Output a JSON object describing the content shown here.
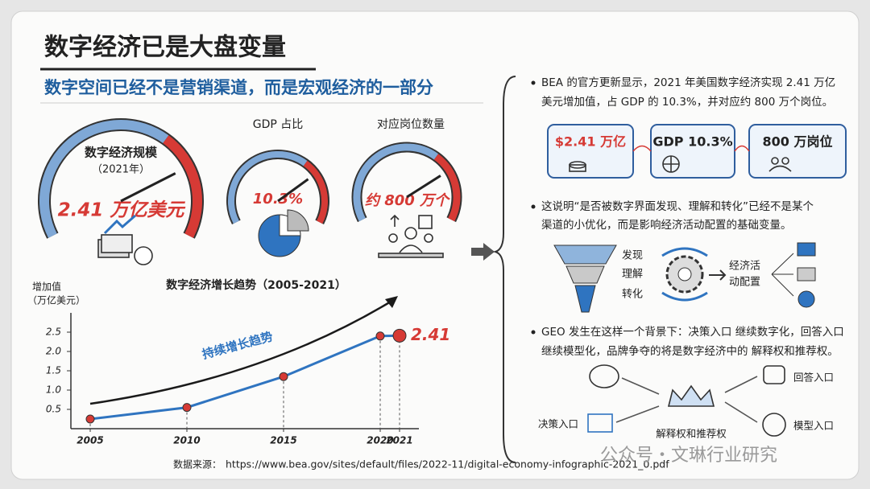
{
  "header": {
    "title": "数字经济已是大盘变量",
    "subtitle": "数字空间已经不是营销渠道，而是宏观经济的一部分"
  },
  "gauges": [
    {
      "title": "数字经济规模",
      "subtitle": "（2021年）",
      "value_text": "2.41 万亿美元"
    },
    {
      "title": "GDP 占比",
      "value_text": "10.3%"
    },
    {
      "title": "对应岗位数量",
      "value_text": "约 800 万个"
    }
  ],
  "chart_data": {
    "type": "line",
    "title": "数字经济增长趋势（2005-2021）",
    "ylabel": [
      "增加值",
      "（万亿美元）"
    ],
    "annotation": "持续增长趋势",
    "x": [
      2005,
      2010,
      2015,
      2020,
      2021
    ],
    "values": [
      0.25,
      0.55,
      1.35,
      2.4,
      2.41
    ],
    "color": "#2f74c0",
    "xlim": [
      2004,
      2022
    ],
    "xticks": [
      2005,
      2010,
      2015,
      2020,
      2021
    ],
    "ylim": [
      0,
      3
    ],
    "yticks": [
      0.5,
      {
        "value": 1,
        "label": "1.0"
      },
      1.5,
      {
        "value": 2,
        "label": "2.0"
      },
      2.5
    ],
    "grid": false,
    "source_label": "数据来源：",
    "source_url": "https://www.bea.gov/sites/default/files/2022-11/digital-economy-infographic-2021_0.pdf"
  },
  "right_panel": {
    "bullets": [
      {
        "lines": [
          "BEA 的官方更新显示，2021 年美国数字经济实现 2.41 万亿",
          "美元增加值，占 GDP 的 10.3%，并对应约 800 万个岗位。"
        ]
      },
      {
        "lines": [
          "这说明“是否被数字界面发现、理解和转化”已经不是某个",
          "渠道的小优化，而是影响经济活动配置的基础变量。"
        ]
      },
      {
        "lines": [
          "GEO 发生在这样一个背景下：决策入口 继续数字化，回答入口",
          "继续模型化，品牌争夺的将是数字经济中的 解释权和推荐权。"
        ]
      }
    ],
    "cards": [
      "$2.41 万亿",
      "GDP 10.3%",
      "800 万岗位"
    ],
    "funnel": [
      "发现",
      "理解",
      "转化"
    ],
    "outcome": [
      "经济活",
      "动配置"
    ],
    "entries": {
      "decision": "决策入口",
      "center": "解释权和推荐权",
      "answer": "回答入口",
      "model": "模型入口"
    }
  },
  "watermark": "公众号・文琳行业研究"
}
